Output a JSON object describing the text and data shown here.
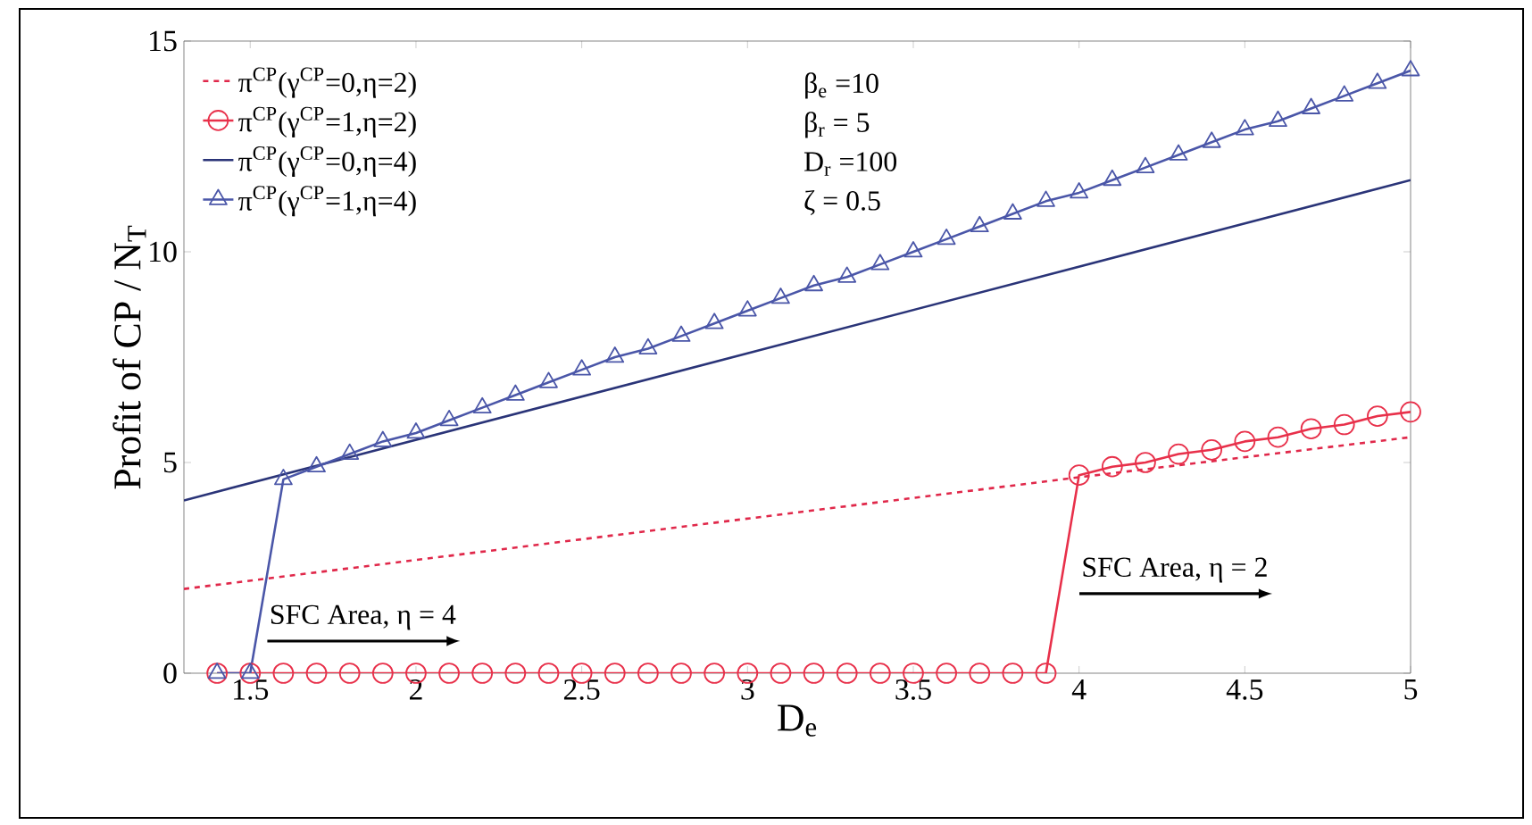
{
  "chart_data": {
    "type": "line",
    "xlabel": "D$_{e}$",
    "ylabel": "Profit of CP / N$_{T}$",
    "xlim": [
      1.3,
      5
    ],
    "ylim": [
      0,
      15
    ],
    "xticks": [
      1.5,
      2,
      2.5,
      3,
      3.5,
      4,
      4.5,
      5
    ],
    "yticks": [
      0,
      5,
      10,
      15
    ],
    "grid": false,
    "legend": "top left",
    "series": [
      {
        "name": "π$^{CP}$(γ$^{CP}$=0,η=2)",
        "color": "#e0284a",
        "line_style": "dashed",
        "marker": "none",
        "x": [
          1.3,
          4,
          5
        ],
        "values": [
          2.0,
          4.65,
          5.6
        ]
      },
      {
        "name": "π$^{CP}$(γ$^{CP}$=1,η=2)",
        "color": "#e8304a",
        "line_style": "solid",
        "marker": "circle",
        "x": [
          1.4,
          1.5,
          1.6,
          1.7,
          1.8,
          1.9,
          2.0,
          2.1,
          2.2,
          2.3,
          2.4,
          2.5,
          2.6,
          2.7,
          2.8,
          2.9,
          3.0,
          3.1,
          3.2,
          3.3,
          3.4,
          3.5,
          3.6,
          3.7,
          3.8,
          3.9,
          4.0,
          4.1,
          4.2,
          4.3,
          4.4,
          4.5,
          4.6,
          4.7,
          4.8,
          4.9,
          5.0
        ],
        "values": [
          0,
          0,
          0,
          0,
          0,
          0,
          0,
          0,
          0,
          0,
          0,
          0,
          0,
          0,
          0,
          0,
          0,
          0,
          0,
          0,
          0,
          0,
          0,
          0,
          0,
          0,
          4.7,
          4.9,
          5.0,
          5.2,
          5.3,
          5.5,
          5.6,
          5.8,
          5.9,
          6.1,
          6.2
        ]
      },
      {
        "name": "π$^{CP}$(γ$^{CP}$=0,η=4)",
        "color": "#2a3478",
        "line_style": "solid",
        "marker": "none",
        "x": [
          1.3,
          5
        ],
        "values": [
          4.1,
          11.7
        ]
      },
      {
        "name": "π$^{CP}$(γ$^{CP}$=1,η=4)",
        "color": "#4a56a8",
        "line_style": "solid",
        "marker": "triangle",
        "x": [
          1.4,
          1.5,
          1.6,
          1.7,
          1.8,
          1.9,
          2.0,
          2.1,
          2.2,
          2.3,
          2.4,
          2.5,
          2.6,
          2.7,
          2.8,
          2.9,
          3.0,
          3.1,
          3.2,
          3.3,
          3.4,
          3.5,
          3.6,
          3.7,
          3.8,
          3.9,
          4.0,
          4.1,
          4.2,
          4.3,
          4.4,
          4.5,
          4.6,
          4.7,
          4.8,
          4.9,
          5.0
        ],
        "values": [
          0,
          0,
          4.6,
          4.9,
          5.2,
          5.5,
          5.7,
          6.0,
          6.3,
          6.6,
          6.9,
          7.2,
          7.5,
          7.7,
          8.0,
          8.3,
          8.6,
          8.9,
          9.2,
          9.4,
          9.7,
          10.0,
          10.3,
          10.6,
          10.9,
          11.2,
          11.4,
          11.7,
          12.0,
          12.3,
          12.6,
          12.9,
          13.1,
          13.4,
          13.7,
          14.0,
          14.3
        ]
      }
    ],
    "annotations": [
      "β$_{e}$ =10",
      "β$_{r}$ = 5",
      "D$_{r}$ =100",
      "ζ = 0.5",
      "SFC Area, η = 4",
      "SFC Area, η = 2"
    ]
  }
}
